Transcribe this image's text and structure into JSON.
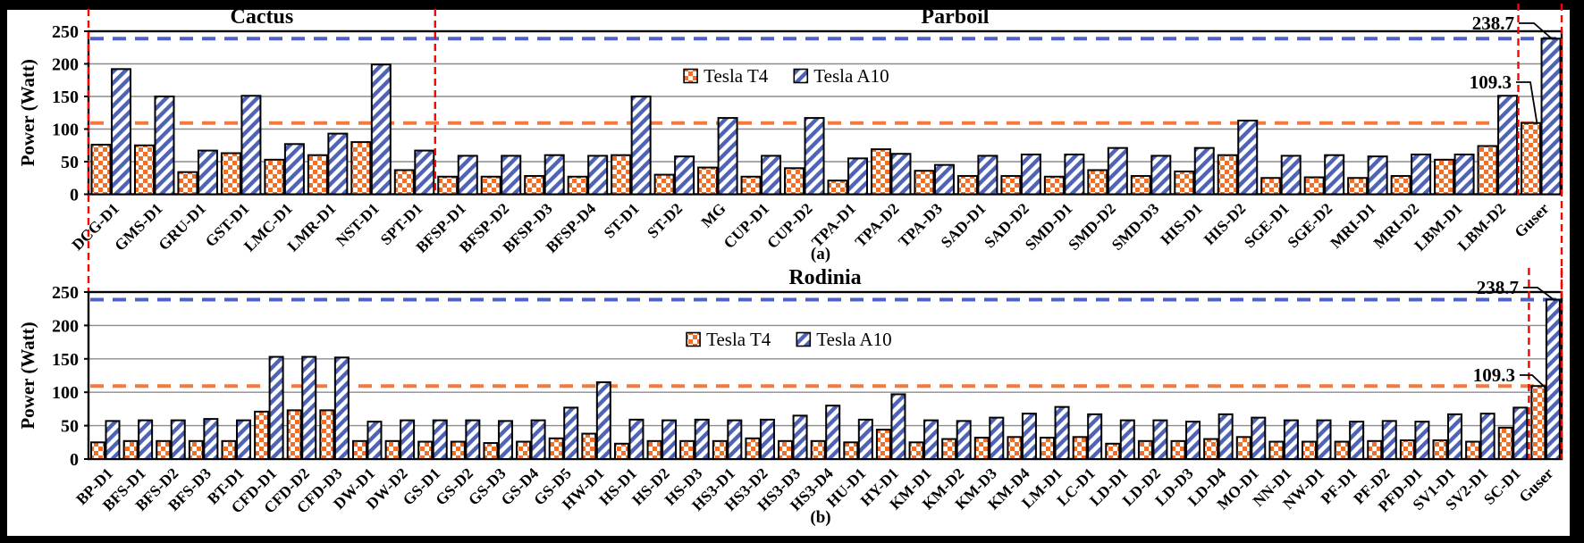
{
  "figure": {
    "description": "GPU power consumption bar charts",
    "panel_a_caption": "(a)",
    "panel_b_caption": "(b)"
  },
  "palette": {
    "t4_orange": "#F0702A",
    "a10_blue": "#4E63B5",
    "ref_line_blue": "#4F61C4",
    "ref_line_orange": "#F3793C",
    "separator_red": "#FF0000",
    "gridline_gray": "#8C8C8C",
    "axis_black": "#000000",
    "canvas_white": "#FFFFFF"
  },
  "chart_data": [
    {
      "id": "a",
      "type": "bar",
      "caption": "(a)",
      "ylabel": "Power (Watt)",
      "ylim": [
        0,
        250
      ],
      "yticks": [
        0,
        50,
        100,
        150,
        200,
        250
      ],
      "grid": "horizontal",
      "legend_position": "inside-top-center",
      "suite_titles": [
        {
          "label": "Cactus",
          "center_category": 4.0
        },
        {
          "label": "Parboil",
          "center_category": 20.0
        }
      ],
      "separators_at_category_boundaries": [
        0,
        8,
        33,
        34
      ],
      "categories": [
        "DCG-D1",
        "GMS-D1",
        "GRU-D1",
        "GST-D1",
        "LMC-D1",
        "LMR-D1",
        "NST-D1",
        "SPT-D1",
        "BFSP-D1",
        "BFSP-D2",
        "BFSP-D3",
        "BFSP-D4",
        "ST-D1",
        "ST-D2",
        "MG",
        "CUP-D1",
        "CUP-D2",
        "TPA-D1",
        "TPA-D2",
        "TPA-D3",
        "SAD-D1",
        "SAD-D2",
        "SMD-D1",
        "SMD-D2",
        "SMD-D3",
        "HIS-D1",
        "HIS-D2",
        "SGE-D1",
        "SGE-D2",
        "MRI-D1",
        "MRI-D2",
        "LBM-D1",
        "LBM-D2",
        "Guser"
      ],
      "series": [
        {
          "name": "Tesla T4",
          "pattern": "checker-orange",
          "values": [
            76,
            75,
            34,
            63,
            53,
            60,
            80,
            37,
            27,
            27,
            28,
            27,
            60,
            30,
            41,
            27,
            40,
            21,
            69,
            36,
            28,
            28,
            27,
            37,
            28,
            35,
            60,
            25,
            26,
            25,
            28,
            53,
            74,
            109.3
          ]
        },
        {
          "name": "Tesla A10",
          "pattern": "diagonal-blue",
          "values": [
            192,
            150,
            67,
            151,
            77,
            93,
            199,
            67,
            59,
            59,
            60,
            59,
            150,
            58,
            117,
            59,
            117,
            55,
            62,
            45,
            59,
            61,
            61,
            71,
            59,
            71,
            113,
            59,
            60,
            58,
            61,
            61,
            151,
            238.7
          ]
        }
      ],
      "ref_lines": [
        {
          "value": 238.7,
          "series": "Tesla A10",
          "style": "dashed"
        },
        {
          "value": 109.3,
          "series": "Tesla T4",
          "style": "dashed"
        }
      ],
      "annotations": [
        {
          "text": "238.7",
          "series_index": 1,
          "category": "Guser"
        },
        {
          "text": "109.3",
          "series_index": 0,
          "category": "Guser"
        }
      ]
    },
    {
      "id": "b",
      "type": "bar",
      "caption": "(b)",
      "ylabel": "Power (Watt)",
      "ylim": [
        0,
        250
      ],
      "yticks": [
        0,
        50,
        100,
        150,
        200,
        250
      ],
      "grid": "horizontal",
      "legend_position": "inside-top-center",
      "suite_titles": [
        {
          "label": "Rodinia",
          "center_category": 22.5
        }
      ],
      "separators_at_category_boundaries": [
        44,
        45
      ],
      "categories": [
        "BP-D1",
        "BFS-D1",
        "BFS-D2",
        "BFS-D3",
        "BT-D1",
        "CFD-D1",
        "CFD-D2",
        "CFD-D3",
        "DW-D1",
        "DW-D2",
        "GS-D1",
        "GS-D2",
        "GS-D3",
        "GS-D4",
        "GS-D5",
        "HW-D1",
        "HS-D1",
        "HS-D2",
        "HS-D3",
        "HS3-D1",
        "HS3-D2",
        "HS3-D3",
        "HS3-D4",
        "HU-D1",
        "HY-D1",
        "KM-D1",
        "KM-D2",
        "KM-D3",
        "KM-D4",
        "LM-D1",
        "LC-D1",
        "LD-D1",
        "LD-D2",
        "LD-D3",
        "LD-D4",
        "MO-D1",
        "NN-D1",
        "NW-D1",
        "PF-D1",
        "PF-D2",
        "PFD-D1",
        "SV1-D1",
        "SV2-D1",
        "SC-D1",
        "Guser"
      ],
      "series": [
        {
          "name": "Tesla T4",
          "pattern": "checker-orange",
          "values": [
            25,
            27,
            27,
            27,
            27,
            71,
            73,
            73,
            27,
            27,
            26,
            26,
            24,
            26,
            31,
            38,
            23,
            27,
            27,
            27,
            31,
            27,
            27,
            25,
            44,
            25,
            30,
            32,
            33,
            32,
            33,
            23,
            27,
            27,
            30,
            33,
            26,
            26,
            26,
            27,
            28,
            28,
            26,
            47,
            109.3
          ]
        },
        {
          "name": "Tesla A10",
          "pattern": "diagonal-blue",
          "values": [
            57,
            58,
            58,
            60,
            58,
            153,
            153,
            152,
            56,
            58,
            58,
            58,
            57,
            58,
            77,
            115,
            59,
            58,
            59,
            58,
            59,
            65,
            80,
            59,
            97,
            58,
            57,
            62,
            68,
            78,
            67,
            58,
            58,
            56,
            67,
            62,
            58,
            58,
            56,
            57,
            56,
            67,
            68,
            77,
            238.7
          ]
        }
      ],
      "ref_lines": [
        {
          "value": 238.7,
          "series": "Tesla A10",
          "style": "dashed"
        },
        {
          "value": 109.3,
          "series": "Tesla T4",
          "style": "dashed"
        }
      ],
      "annotations": [
        {
          "text": "238.7",
          "series_index": 1,
          "category": "Guser"
        },
        {
          "text": "109.3",
          "series_index": 0,
          "category": "Guser"
        }
      ]
    }
  ]
}
